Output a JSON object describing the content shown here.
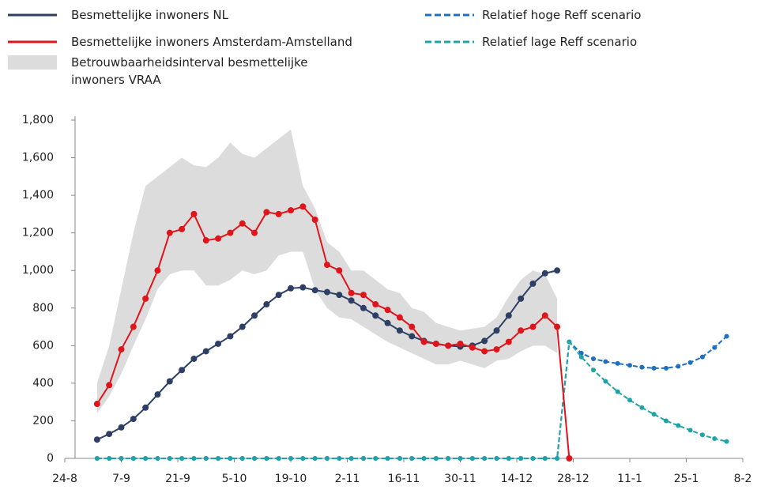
{
  "chart_data": {
    "type": "line",
    "x": [
      8,
      11,
      14,
      17,
      20,
      23,
      26,
      29,
      32,
      35,
      38,
      41,
      44,
      47,
      50,
      53,
      56,
      59,
      62,
      65,
      68,
      71,
      74,
      77,
      80,
      83,
      86,
      89,
      92,
      95,
      98,
      101,
      104,
      107,
      110,
      113,
      116,
      119,
      122,
      125,
      128,
      131,
      134,
      137,
      140,
      143,
      146,
      149,
      152,
      155,
      158,
      161,
      164
    ],
    "xlim": [
      0,
      168
    ],
    "xticks": [
      {
        "value": 0,
        "label": "24-8"
      },
      {
        "value": 14,
        "label": "7-9"
      },
      {
        "value": 28,
        "label": "21-9"
      },
      {
        "value": 42,
        "label": "5-10"
      },
      {
        "value": 56,
        "label": "19-10"
      },
      {
        "value": 70,
        "label": "2-11"
      },
      {
        "value": 84,
        "label": "16-11"
      },
      {
        "value": 98,
        "label": "30-11"
      },
      {
        "value": 112,
        "label": "14-12"
      },
      {
        "value": 126,
        "label": "28-12"
      },
      {
        "value": 140,
        "label": "11-1"
      },
      {
        "value": 154,
        "label": "25-1"
      },
      {
        "value": 168,
        "label": "8-2"
      }
    ],
    "ylim": [
      0,
      1800
    ],
    "yticks": [
      0,
      200,
      400,
      600,
      800,
      {
        "value": 1000,
        "label": "1,000"
      },
      {
        "value": 1200,
        "label": "1,200"
      },
      {
        "value": 1400,
        "label": "1,400"
      },
      {
        "value": 1600,
        "label": "1,600"
      },
      {
        "value": 1800,
        "label": "1,800"
      }
    ],
    "band": {
      "name": "Betrouwbaarheidsinterval besmettelijke inwoners VRAA",
      "color": "#dcdcdc",
      "upper": [
        400,
        600,
        900,
        1200,
        1450,
        1500,
        1550,
        1600,
        1560,
        1550,
        1600,
        1680,
        1620,
        1600,
        1650,
        1700,
        1750,
        1450,
        1330,
        1150,
        1100,
        1000,
        1000,
        950,
        900,
        880,
        800,
        780,
        720,
        700,
        680,
        690,
        700,
        750,
        860,
        950,
        1000,
        980,
        850,
        null,
        null,
        null,
        null,
        null,
        null,
        null,
        null,
        null,
        null,
        null,
        null,
        null,
        null
      ],
      "lower": [
        240,
        330,
        450,
        600,
        740,
        900,
        980,
        1000,
        1000,
        920,
        920,
        950,
        1000,
        980,
        1000,
        1080,
        1100,
        1100,
        900,
        800,
        750,
        740,
        700,
        660,
        620,
        590,
        560,
        530,
        500,
        500,
        520,
        500,
        480,
        520,
        530,
        570,
        600,
        600,
        560,
        null,
        null,
        null,
        null,
        null,
        null,
        null,
        null,
        null,
        null,
        null,
        null,
        null,
        null
      ]
    },
    "series": [
      {
        "name": "Besmettelijke inwoners NL",
        "color": "#2e3f66",
        "dash": false,
        "values": [
          100,
          130,
          165,
          210,
          270,
          340,
          410,
          470,
          530,
          570,
          610,
          650,
          700,
          760,
          820,
          870,
          905,
          910,
          895,
          885,
          870,
          840,
          800,
          760,
          720,
          680,
          650,
          625,
          610,
          600,
          595,
          600,
          625,
          680,
          760,
          850,
          930,
          985,
          1000,
          null,
          null,
          null,
          null,
          null,
          null,
          null,
          null,
          null,
          null,
          null,
          null,
          null,
          null
        ]
      },
      {
        "name": "Besmettelijke inwoners Amsterdam-Amstelland",
        "color": "#e0141b",
        "dash": false,
        "values": [
          290,
          390,
          580,
          700,
          850,
          1000,
          1200,
          1220,
          1300,
          1160,
          1170,
          1200,
          1250,
          1200,
          1310,
          1300,
          1320,
          1340,
          1270,
          1030,
          1000,
          880,
          870,
          820,
          790,
          750,
          700,
          620,
          610,
          600,
          610,
          590,
          570,
          580,
          620,
          680,
          700,
          760,
          700,
          0,
          null,
          null,
          null,
          null,
          null,
          null,
          null,
          null,
          null,
          null,
          null,
          null,
          null
        ]
      },
      {
        "name": "Relatief hoge Reff scenario",
        "color": "#1f6fbf",
        "dash": true,
        "values": [
          0,
          0,
          0,
          0,
          0,
          0,
          0,
          0,
          0,
          0,
          0,
          0,
          0,
          0,
          0,
          0,
          0,
          0,
          0,
          0,
          0,
          0,
          0,
          0,
          0,
          0,
          0,
          0,
          0,
          0,
          0,
          0,
          0,
          0,
          0,
          0,
          0,
          0,
          0,
          620,
          560,
          530,
          515,
          505,
          495,
          485,
          480,
          480,
          490,
          510,
          540,
          590,
          650
        ]
      },
      {
        "name": "Relatief lage Reff scenario",
        "color": "#1fa3a8",
        "dash": true,
        "values": [
          0,
          0,
          0,
          0,
          0,
          0,
          0,
          0,
          0,
          0,
          0,
          0,
          0,
          0,
          0,
          0,
          0,
          0,
          0,
          0,
          0,
          0,
          0,
          0,
          0,
          0,
          0,
          0,
          0,
          0,
          0,
          0,
          0,
          0,
          0,
          0,
          0,
          0,
          0,
          620,
          540,
          470,
          410,
          355,
          310,
          270,
          235,
          200,
          175,
          150,
          125,
          105,
          90
        ]
      }
    ]
  }
}
